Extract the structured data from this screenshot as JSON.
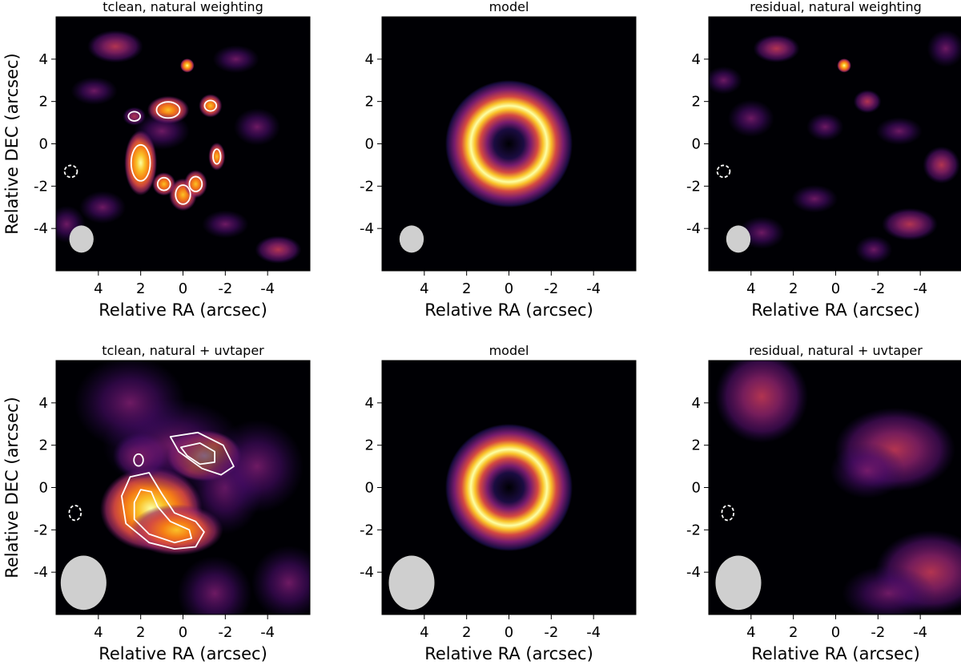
{
  "figure": {
    "xlabel": "Relative RA (arcsec)",
    "ylabel": "Relative DEC (arcsec)",
    "colormap": "inferno-like",
    "background": "#000004",
    "beam_color": "#cfcfcf",
    "contour_color": "#ffffff"
  },
  "chart_data": [
    {
      "type": "heatmap",
      "title": "tclean, natural weighting",
      "xlabel": "Relative RA (arcsec)",
      "ylabel": "Relative DEC (arcsec)",
      "xlim": [
        6,
        -6
      ],
      "ylim": [
        -6,
        6
      ],
      "xticks": [
        4,
        2,
        0,
        -2,
        -4
      ],
      "yticks": [
        -4,
        -2,
        0,
        2,
        4
      ],
      "xticklabels": [
        "4",
        "2",
        "0",
        "-2",
        "-4"
      ],
      "yticklabels": [
        "-4",
        "-2",
        "0",
        "2",
        "4"
      ],
      "beam": {
        "x": 4.8,
        "y": -4.5,
        "major": 0.95,
        "minor": 0.85
      },
      "emission": [
        {
          "x": 2.0,
          "y": -0.9,
          "sx": 0.35,
          "sy": 0.7,
          "amp": 0.85
        },
        {
          "x": 0.7,
          "y": 1.6,
          "sx": 0.45,
          "sy": 0.3,
          "amp": 0.75
        },
        {
          "x": -1.3,
          "y": 1.8,
          "sx": 0.25,
          "sy": 0.25,
          "amp": 0.6
        },
        {
          "x": 2.3,
          "y": 1.3,
          "sx": 0.25,
          "sy": 0.2,
          "amp": 0.5
        },
        {
          "x": -1.6,
          "y": -0.6,
          "sx": 0.18,
          "sy": 0.3,
          "amp": 0.55
        },
        {
          "x": 0.9,
          "y": -1.9,
          "sx": 0.25,
          "sy": 0.25,
          "amp": 0.6
        },
        {
          "x": 0.0,
          "y": -2.4,
          "sx": 0.3,
          "sy": 0.35,
          "amp": 0.7
        },
        {
          "x": -0.6,
          "y": -1.9,
          "sx": 0.25,
          "sy": 0.3,
          "amp": 0.6
        },
        {
          "x": -0.2,
          "y": 3.7,
          "sx": 0.15,
          "sy": 0.15,
          "amp": 1.0
        },
        {
          "x": 3.2,
          "y": 4.6,
          "sx": 0.6,
          "sy": 0.35,
          "amp": 0.45
        },
        {
          "x": -3.5,
          "y": 0.8,
          "sx": 0.5,
          "sy": 0.4,
          "amp": 0.3
        },
        {
          "x": 4.2,
          "y": 2.5,
          "sx": 0.5,
          "sy": 0.3,
          "amp": 0.28
        },
        {
          "x": 3.8,
          "y": -3.0,
          "sx": 0.5,
          "sy": 0.35,
          "amp": 0.3
        },
        {
          "x": -4.5,
          "y": -5.0,
          "sx": 0.5,
          "sy": 0.3,
          "amp": 0.35
        },
        {
          "x": -2.5,
          "y": 4.0,
          "sx": 0.5,
          "sy": 0.3,
          "amp": 0.3
        },
        {
          "x": 5.5,
          "y": -3.8,
          "sx": 0.4,
          "sy": 0.4,
          "amp": 0.3
        },
        {
          "x": 1.0,
          "y": 0.6,
          "sx": 0.6,
          "sy": 0.4,
          "amp": 0.3
        },
        {
          "x": -2.0,
          "y": -3.8,
          "sx": 0.5,
          "sy": 0.3,
          "amp": 0.25
        }
      ],
      "contours": [
        {
          "x": 2.0,
          "y": -0.9,
          "rx": 0.45,
          "ry": 0.85,
          "dashed": false
        },
        {
          "x": 0.7,
          "y": 1.6,
          "rx": 0.55,
          "ry": 0.38,
          "dashed": false
        },
        {
          "x": -1.3,
          "y": 1.8,
          "rx": 0.28,
          "ry": 0.25,
          "dashed": false
        },
        {
          "x": 2.3,
          "y": 1.3,
          "rx": 0.28,
          "ry": 0.22,
          "dashed": false
        },
        {
          "x": -1.6,
          "y": -0.6,
          "rx": 0.18,
          "ry": 0.35,
          "dashed": false
        },
        {
          "x": 0.9,
          "y": -1.9,
          "rx": 0.3,
          "ry": 0.3,
          "dashed": false
        },
        {
          "x": 0.0,
          "y": -2.4,
          "rx": 0.35,
          "ry": 0.45,
          "dashed": false
        },
        {
          "x": -0.6,
          "y": -1.9,
          "rx": 0.3,
          "ry": 0.35,
          "dashed": false
        },
        {
          "x": 5.3,
          "y": -1.3,
          "rx": 0.3,
          "ry": 0.28,
          "dashed": true
        }
      ]
    },
    {
      "type": "heatmap",
      "title": "model",
      "xlabel": "Relative RA (arcsec)",
      "ylabel": "",
      "xlim": [
        6,
        -6
      ],
      "ylim": [
        -6,
        6
      ],
      "xticks": [
        4,
        2,
        0,
        -2,
        -4
      ],
      "yticks": [
        -4,
        -2,
        0,
        2,
        4
      ],
      "xticklabels": [
        "4",
        "2",
        "0",
        "-2",
        "-4"
      ],
      "yticklabels": [
        "-4",
        "-2",
        "0",
        "2",
        "4"
      ],
      "ring": {
        "x": 0,
        "y": 0,
        "radius": 1.8,
        "width": 0.55
      },
      "beam": {
        "x": 4.6,
        "y": -4.5,
        "major": 0.95,
        "minor": 0.85
      }
    },
    {
      "type": "heatmap",
      "title": "residual, natural weighting",
      "xlabel": "Relative RA (arcsec)",
      "ylabel": "",
      "xlim": [
        6,
        -6
      ],
      "ylim": [
        -6,
        6
      ],
      "xticks": [
        4,
        2,
        0,
        -2,
        -4
      ],
      "yticks": [
        -4,
        -2,
        0,
        2,
        4
      ],
      "xticklabels": [
        "4",
        "2",
        "0",
        "-2",
        "-4"
      ],
      "yticklabels": [
        "-4",
        "-2",
        "0",
        "2",
        "4"
      ],
      "beam": {
        "x": 4.6,
        "y": -4.5,
        "major": 0.95,
        "minor": 0.85
      },
      "emission": [
        {
          "x": -0.4,
          "y": 3.7,
          "sx": 0.15,
          "sy": 0.15,
          "amp": 1.0
        },
        {
          "x": 2.8,
          "y": 4.5,
          "sx": 0.5,
          "sy": 0.3,
          "amp": 0.4
        },
        {
          "x": -1.5,
          "y": 2.0,
          "sx": 0.3,
          "sy": 0.25,
          "amp": 0.45
        },
        {
          "x": -3.0,
          "y": 0.6,
          "sx": 0.5,
          "sy": 0.3,
          "amp": 0.3
        },
        {
          "x": 4.0,
          "y": 1.2,
          "sx": 0.5,
          "sy": 0.4,
          "amp": 0.25
        },
        {
          "x": -5.0,
          "y": -1.0,
          "sx": 0.4,
          "sy": 0.4,
          "amp": 0.35
        },
        {
          "x": 1.0,
          "y": -2.6,
          "sx": 0.5,
          "sy": 0.3,
          "amp": 0.25
        },
        {
          "x": -3.5,
          "y": -3.8,
          "sx": 0.6,
          "sy": 0.35,
          "amp": 0.35
        },
        {
          "x": 3.5,
          "y": -4.2,
          "sx": 0.5,
          "sy": 0.35,
          "amp": 0.3
        },
        {
          "x": -5.2,
          "y": 4.5,
          "sx": 0.4,
          "sy": 0.4,
          "amp": 0.3
        },
        {
          "x": 0.5,
          "y": 0.8,
          "sx": 0.4,
          "sy": 0.3,
          "amp": 0.2
        },
        {
          "x": -1.8,
          "y": -5.0,
          "sx": 0.4,
          "sy": 0.3,
          "amp": 0.3
        },
        {
          "x": 5.3,
          "y": 3.0,
          "sx": 0.4,
          "sy": 0.3,
          "amp": 0.25
        }
      ],
      "contours": [
        {
          "x": 5.3,
          "y": -1.3,
          "rx": 0.3,
          "ry": 0.28,
          "dashed": true
        }
      ]
    },
    {
      "type": "heatmap",
      "title": "tclean, natural + uvtaper",
      "xlabel": "Relative RA (arcsec)",
      "ylabel": "Relative DEC (arcsec)",
      "xlim": [
        6,
        -6
      ],
      "ylim": [
        -6,
        6
      ],
      "xticks": [
        4,
        2,
        0,
        -2,
        -4
      ],
      "yticks": [
        -4,
        -2,
        0,
        2,
        4
      ],
      "xticklabels": [
        "4",
        "2",
        "0",
        "-2",
        "-4"
      ],
      "yticklabels": [
        "-4",
        "-2",
        "0",
        "2",
        "4"
      ],
      "beam": {
        "x": 4.7,
        "y": -4.5,
        "major": 1.9,
        "minor": 1.6
      },
      "emission": [
        {
          "x": 1.5,
          "y": -1.0,
          "sx": 1.1,
          "sy": 0.9,
          "amp": 0.8
        },
        {
          "x": 0.3,
          "y": -2.0,
          "sx": 1.0,
          "sy": 0.55,
          "amp": 0.75
        },
        {
          "x": -1.0,
          "y": 1.5,
          "sx": 0.8,
          "sy": 0.55,
          "amp": 0.85
        },
        {
          "x": 2.0,
          "y": 1.5,
          "sx": 0.6,
          "sy": 0.5,
          "amp": 0.45
        },
        {
          "x": 0.5,
          "y": 2.0,
          "sx": 1.5,
          "sy": 1.0,
          "amp": 0.3
        },
        {
          "x": -2.0,
          "y": 0.0,
          "sx": 0.8,
          "sy": 1.0,
          "amp": 0.3
        },
        {
          "x": -3.5,
          "y": 1.0,
          "sx": 1.0,
          "sy": 1.0,
          "amp": 0.25
        },
        {
          "x": 2.5,
          "y": 4.0,
          "sx": 1.2,
          "sy": 1.0,
          "amp": 0.2
        },
        {
          "x": -1.5,
          "y": -5.0,
          "sx": 0.8,
          "sy": 0.8,
          "amp": 0.25
        },
        {
          "x": -5.0,
          "y": -4.5,
          "sx": 0.8,
          "sy": 0.8,
          "amp": 0.2
        }
      ],
      "contours": [
        {
          "x": 2.1,
          "y": 1.3,
          "rx": 0.22,
          "ry": 0.28,
          "dashed": false
        },
        {
          "x": 5.1,
          "y": -1.2,
          "rx": 0.28,
          "ry": 0.35,
          "dashed": true
        }
      ]
    },
    {
      "type": "heatmap",
      "title": "model",
      "xlabel": "Relative RA (arcsec)",
      "ylabel": "",
      "xlim": [
        6,
        -6
      ],
      "ylim": [
        -6,
        6
      ],
      "xticks": [
        4,
        2,
        0,
        -2,
        -4
      ],
      "yticks": [
        -4,
        -2,
        0,
        2,
        4
      ],
      "xticklabels": [
        "4",
        "2",
        "0",
        "-2",
        "-4"
      ],
      "yticklabels": [
        "-4",
        "-2",
        "0",
        "2",
        "4"
      ],
      "ring": {
        "x": 0,
        "y": 0,
        "radius": 1.8,
        "width": 0.55
      },
      "beam": {
        "x": 4.6,
        "y": -4.5,
        "major": 1.9,
        "minor": 1.6
      }
    },
    {
      "type": "heatmap",
      "title": "residual, natural + uvtaper",
      "xlabel": "Relative RA (arcsec)",
      "ylabel": "",
      "xlim": [
        6,
        -6
      ],
      "ylim": [
        -6,
        6
      ],
      "xticks": [
        4,
        2,
        0,
        -2,
        -4
      ],
      "yticks": [
        -4,
        -2,
        0,
        2,
        4
      ],
      "xticklabels": [
        "4",
        "2",
        "0",
        "-2",
        "-4"
      ],
      "yticklabels": [
        "-4",
        "-2",
        "0",
        "2",
        "4"
      ],
      "beam": {
        "x": 4.6,
        "y": -4.5,
        "major": 1.9,
        "minor": 1.6
      },
      "emission": [
        {
          "x": 3.5,
          "y": 4.3,
          "sx": 1.0,
          "sy": 1.0,
          "amp": 0.4
        },
        {
          "x": -2.8,
          "y": 1.8,
          "sx": 1.3,
          "sy": 0.9,
          "amp": 0.45
        },
        {
          "x": -1.5,
          "y": 0.8,
          "sx": 0.8,
          "sy": 0.6,
          "amp": 0.25
        },
        {
          "x": -4.5,
          "y": -4.0,
          "sx": 1.2,
          "sy": 0.9,
          "amp": 0.35
        },
        {
          "x": -2.5,
          "y": -5.0,
          "sx": 1.0,
          "sy": 0.6,
          "amp": 0.25
        }
      ],
      "contours": [
        {
          "x": 5.1,
          "y": -1.2,
          "rx": 0.28,
          "ry": 0.35,
          "dashed": true
        }
      ]
    }
  ]
}
